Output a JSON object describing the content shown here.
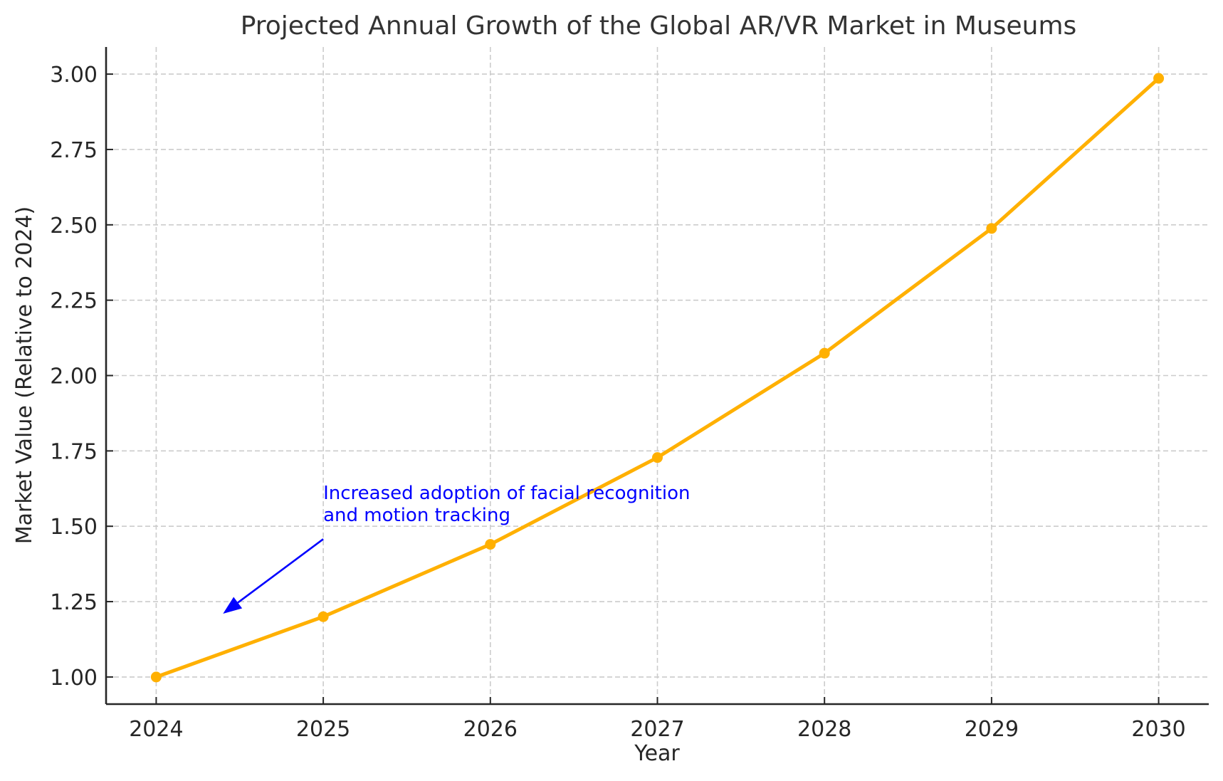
{
  "chart_data": {
    "type": "line",
    "title": "Projected Annual Growth of the Global AR/VR Market in Museums",
    "xlabel": "Year",
    "ylabel": "Market Value (Relative to 2024)",
    "x": [
      2024,
      2025,
      2026,
      2027,
      2028,
      2029,
      2030
    ],
    "series": [
      {
        "name": "Market Value",
        "color": "#FFB000",
        "marker": "circle",
        "values": [
          1.0,
          1.2,
          1.44,
          1.728,
          2.074,
          2.488,
          2.986
        ]
      }
    ],
    "xlim": [
      2023.7,
      2030.3
    ],
    "ylim": [
      0.91,
      3.09
    ],
    "xticks": [
      "2024",
      "2025",
      "2026",
      "2027",
      "2028",
      "2029",
      "2030"
    ],
    "yticks": [
      "1.00",
      "1.25",
      "1.50",
      "1.75",
      "2.00",
      "2.25",
      "2.50",
      "2.75",
      "3.00"
    ],
    "ytick_values": [
      1.0,
      1.25,
      1.5,
      1.75,
      2.0,
      2.25,
      2.5,
      2.75,
      3.0
    ],
    "grid": true,
    "annotations": [
      {
        "text_lines": [
          "Increased adoption of facial recognition",
          "and motion tracking"
        ],
        "text_at": [
          2025,
          1.5
        ],
        "arrow_to": [
          2024.4,
          1.21
        ],
        "color": "#0000FF"
      }
    ]
  }
}
